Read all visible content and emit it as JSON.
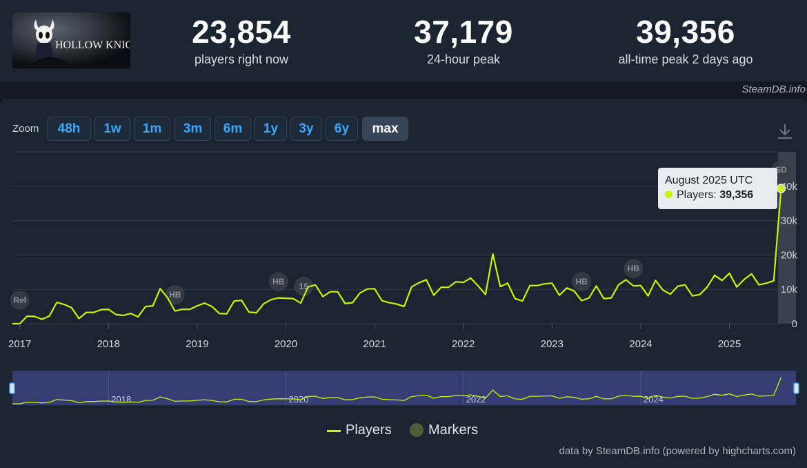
{
  "header": {
    "game_logo_text": "HOLLOW KNIGHT",
    "stats": [
      {
        "value": "23,854",
        "label": "players right now"
      },
      {
        "value": "37,179",
        "label": "24-hour peak"
      },
      {
        "value": "39,356",
        "label": "all-time peak 2 days ago"
      }
    ]
  },
  "credit_top": "SteamDB.info",
  "zoom": {
    "label": "Zoom",
    "buttons": [
      "48h",
      "1w",
      "1m",
      "3m",
      "6m",
      "1y",
      "3y",
      "6y",
      "max"
    ],
    "active": "max"
  },
  "tooltip": {
    "title": "August 2025 UTC",
    "series_label": "Players:",
    "value": "39,356"
  },
  "legend": {
    "players": "Players",
    "markers": "Markers"
  },
  "credit_bottom": "data by SteamDB.info (powered by highcharts.com)",
  "colors": {
    "line": "#c8f700",
    "background": "#1b2431",
    "navigator_bg": "#363d72",
    "accent": "#39a9ff",
    "marker": "#4b5e36"
  },
  "chart_data": {
    "type": "line",
    "series": [
      {
        "name": "Players",
        "x": [
          2016.917,
          2017.0,
          2017.083,
          2017.167,
          2017.25,
          2017.333,
          2017.417,
          2017.5,
          2017.583,
          2017.667,
          2017.75,
          2017.833,
          2017.917,
          2018.0,
          2018.083,
          2018.167,
          2018.25,
          2018.333,
          2018.417,
          2018.5,
          2018.583,
          2018.667,
          2018.75,
          2018.833,
          2018.917,
          2019.0,
          2019.083,
          2019.167,
          2019.25,
          2019.333,
          2019.417,
          2019.5,
          2019.583,
          2019.667,
          2019.75,
          2019.833,
          2019.917,
          2020.0,
          2020.083,
          2020.167,
          2020.25,
          2020.333,
          2020.417,
          2020.5,
          2020.583,
          2020.667,
          2020.75,
          2020.833,
          2020.917,
          2021.0,
          2021.083,
          2021.167,
          2021.25,
          2021.333,
          2021.417,
          2021.5,
          2021.583,
          2021.667,
          2021.75,
          2021.833,
          2021.917,
          2022.0,
          2022.083,
          2022.167,
          2022.25,
          2022.333,
          2022.417,
          2022.5,
          2022.583,
          2022.667,
          2022.75,
          2022.833,
          2022.917,
          2023.0,
          2023.083,
          2023.167,
          2023.25,
          2023.333,
          2023.417,
          2023.5,
          2023.583,
          2023.667,
          2023.75,
          2023.833,
          2023.917,
          2024.0,
          2024.083,
          2024.167,
          2024.25,
          2024.333,
          2024.417,
          2024.5,
          2024.583,
          2024.667,
          2024.75,
          2024.833,
          2024.917,
          2025.0,
          2025.083,
          2025.167,
          2025.25,
          2025.333,
          2025.417,
          2025.5,
          2025.583
        ],
        "values": [
          0,
          0,
          2200,
          2100,
          1300,
          2200,
          6200,
          5600,
          4700,
          1500,
          3300,
          3300,
          4100,
          4200,
          2700,
          2400,
          3000,
          2000,
          5000,
          5200,
          10200,
          7500,
          3700,
          4200,
          4200,
          5200,
          6000,
          5000,
          3000,
          2900,
          6600,
          6800,
          3400,
          3200,
          5800,
          7000,
          7500,
          7400,
          7300,
          6000,
          10700,
          11300,
          7900,
          9300,
          9300,
          5900,
          6100,
          8900,
          10100,
          10200,
          6700,
          6100,
          5700,
          5000,
          10700,
          11900,
          12800,
          8300,
          10600,
          10600,
          12200,
          12000,
          13300,
          11000,
          8500,
          20300,
          10800,
          11800,
          7300,
          6600,
          11100,
          11100,
          11600,
          11800,
          8300,
          10400,
          9500,
          6700,
          7500,
          11000,
          7300,
          7500,
          11300,
          12800,
          11000,
          11100,
          8100,
          12600,
          9800,
          8600,
          10900,
          11300,
          8100,
          8500,
          10700,
          14100,
          12600,
          14700,
          10700,
          12900,
          14500,
          11300,
          11800,
          12500,
          39356
        ]
      }
    ],
    "markers": [
      {
        "x": 2017.0,
        "label": "Rel"
      },
      {
        "x": 2018.75,
        "label": "HB"
      },
      {
        "x": 2019.917,
        "label": "HB"
      },
      {
        "x": 2020.2,
        "label": "15"
      },
      {
        "x": 2023.333,
        "label": "HB"
      },
      {
        "x": 2023.917,
        "label": "HB"
      },
      {
        "x": 2025.583,
        "label": "SD"
      }
    ],
    "x_ticks": [
      2017,
      2018,
      2019,
      2020,
      2021,
      2022,
      2023,
      2024,
      2025
    ],
    "y_ticks": [
      0,
      10000,
      20000,
      30000,
      40000
    ],
    "y_tick_labels": [
      "0",
      "10k",
      "20k",
      "30k",
      "40k"
    ],
    "ylim": [
      0,
      50000
    ],
    "navigator_ticks": [
      "2018",
      "2020",
      "2022",
      "2024"
    ],
    "grid": true,
    "legend_position": "bottom-center"
  }
}
